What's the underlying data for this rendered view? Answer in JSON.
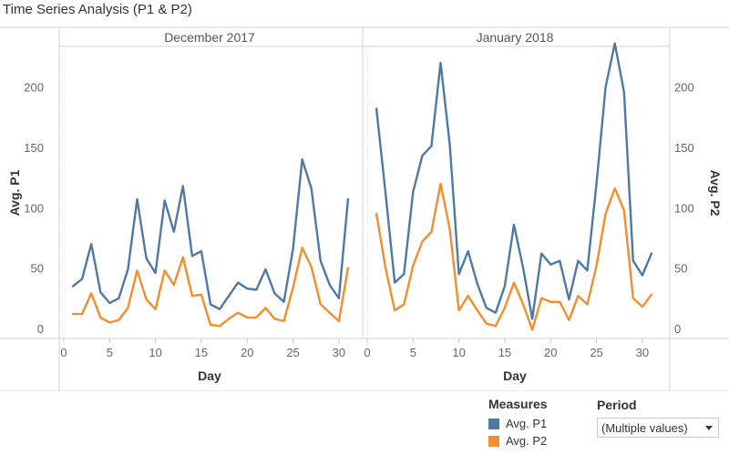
{
  "title": "Time Series Analysis (P1 & P2)",
  "legend": {
    "title": "Measures",
    "items": [
      {
        "label": "Avg. P1",
        "color": "#4e79a7"
      },
      {
        "label": "Avg. P2",
        "color": "#f28e2b"
      }
    ]
  },
  "filter": {
    "title": "Period",
    "value": "(Multiple values)"
  },
  "chart_data": {
    "type": "line",
    "xlabel": "Day",
    "ylabel_left": "Avg. P1",
    "ylabel_right": "Avg. P2",
    "xlim": [
      0,
      32
    ],
    "ylim": [
      -5,
      240
    ],
    "x_ticks": [
      0,
      5,
      10,
      15,
      20,
      25,
      30
    ],
    "y_ticks": [
      0,
      50,
      100,
      150,
      200
    ],
    "panels": [
      {
        "header": "December 2017",
        "x": [
          1,
          2,
          3,
          4,
          5,
          6,
          7,
          8,
          9,
          10,
          11,
          12,
          13,
          14,
          15,
          16,
          17,
          18,
          19,
          20,
          21,
          22,
          23,
          24,
          25,
          26,
          27,
          28,
          29,
          30,
          31
        ],
        "series": [
          {
            "name": "Avg. P1",
            "values": [
              35,
              41,
              70,
              30,
              21,
              25,
              49,
              107,
              58,
              46,
              106,
              80,
              118,
              60,
              64,
              20,
              16,
              27,
              38,
              33,
              32,
              49,
              29,
              22,
              66,
              140,
              116,
              56,
              36,
              25,
              107
            ]
          },
          {
            "name": "Avg. P2",
            "values": [
              12,
              12,
              29,
              9,
              5,
              7,
              17,
              48,
              24,
              16,
              48,
              36,
              59,
              27,
              28,
              3,
              2,
              8,
              13,
              9,
              9,
              17,
              8,
              6,
              34,
              67,
              51,
              20,
              13,
              6,
              50
            ]
          }
        ]
      },
      {
        "header": "January 2018",
        "x": [
          1,
          2,
          3,
          4,
          5,
          6,
          7,
          8,
          9,
          10,
          11,
          12,
          13,
          14,
          15,
          16,
          17,
          18,
          19,
          20,
          21,
          22,
          23,
          24,
          25,
          26,
          27,
          28,
          29,
          30,
          31
        ],
        "series": [
          {
            "name": "Avg. P1",
            "values": [
              182,
              112,
              38,
              45,
              113,
              143,
              151,
              220,
              152,
              45,
              64,
              37,
              17,
              13,
              35,
              86,
              50,
              8,
              62,
              53,
              56,
              24,
              56,
              48,
              120,
              200,
              236,
              196,
              56,
              44,
              62
            ]
          },
          {
            "name": "Avg. P2",
            "values": [
              95,
              50,
              15,
              20,
              52,
              72,
              80,
              120,
              82,
              15,
              27,
              15,
              4,
              2,
              17,
              38,
              20,
              -1,
              25,
              22,
              22,
              7,
              27,
              20,
              52,
              95,
              116,
              98,
              25,
              18,
              28
            ]
          }
        ]
      }
    ]
  }
}
